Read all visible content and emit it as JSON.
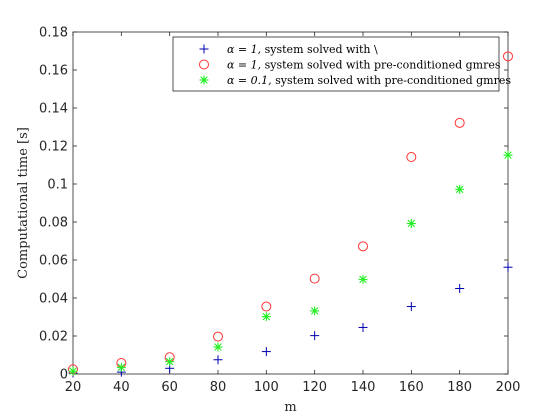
{
  "chart_data": {
    "type": "scatter",
    "title": "",
    "xlabel": "m",
    "ylabel": "Computational time [s]",
    "xlim": [
      20,
      200
    ],
    "ylim": [
      0,
      0.18
    ],
    "xticks": [
      20,
      40,
      60,
      80,
      100,
      120,
      140,
      160,
      180,
      200
    ],
    "xtick_labels": [
      "20",
      "40",
      "60",
      "80",
      "100",
      "120",
      "140",
      "160",
      "180",
      "200"
    ],
    "yticks": [
      0,
      0.02,
      0.04,
      0.06,
      0.08,
      0.1,
      0.12,
      0.14,
      0.16,
      0.18
    ],
    "ytick_labels": [
      "0",
      "0.02",
      "0.04",
      "0.06",
      "0.08",
      "0.1",
      "0.12",
      "0.14",
      "0.16",
      "0.18"
    ],
    "grid": false,
    "legend_position": "top-right",
    "x": [
      20,
      40,
      60,
      80,
      100,
      120,
      140,
      160,
      180,
      200
    ],
    "series": [
      {
        "name": "α = 1, system solved with \\",
        "alpha_part": "α = 1,",
        "text_part": " system solved with \\",
        "marker": "plus",
        "color": "#0000b3",
        "values": [
          0.0005,
          0.001,
          0.003,
          0.0075,
          0.0118,
          0.0202,
          0.0245,
          0.0355,
          0.045,
          0.0562
        ]
      },
      {
        "name": "α = 1, system solved with pre-conditioned gmres",
        "alpha_part": "α = 1,",
        "text_part": " system solved with pre-conditioned gmres",
        "marker": "circle",
        "color": "#ff3333",
        "values": [
          0.0025,
          0.0058,
          0.0088,
          0.0197,
          0.0355,
          0.0502,
          0.0672,
          0.1142,
          0.1322,
          0.1672
        ]
      },
      {
        "name": "α = 0.1, system solved with pre-conditioned gmres",
        "alpha_part": "α = 0.1,",
        "text_part": " system solved with pre-conditioned gmres",
        "marker": "asterisk",
        "color": "#22ee22",
        "values": [
          0.0015,
          0.0035,
          0.0065,
          0.0142,
          0.0302,
          0.0332,
          0.0498,
          0.0792,
          0.0972,
          0.1152
        ]
      }
    ]
  }
}
